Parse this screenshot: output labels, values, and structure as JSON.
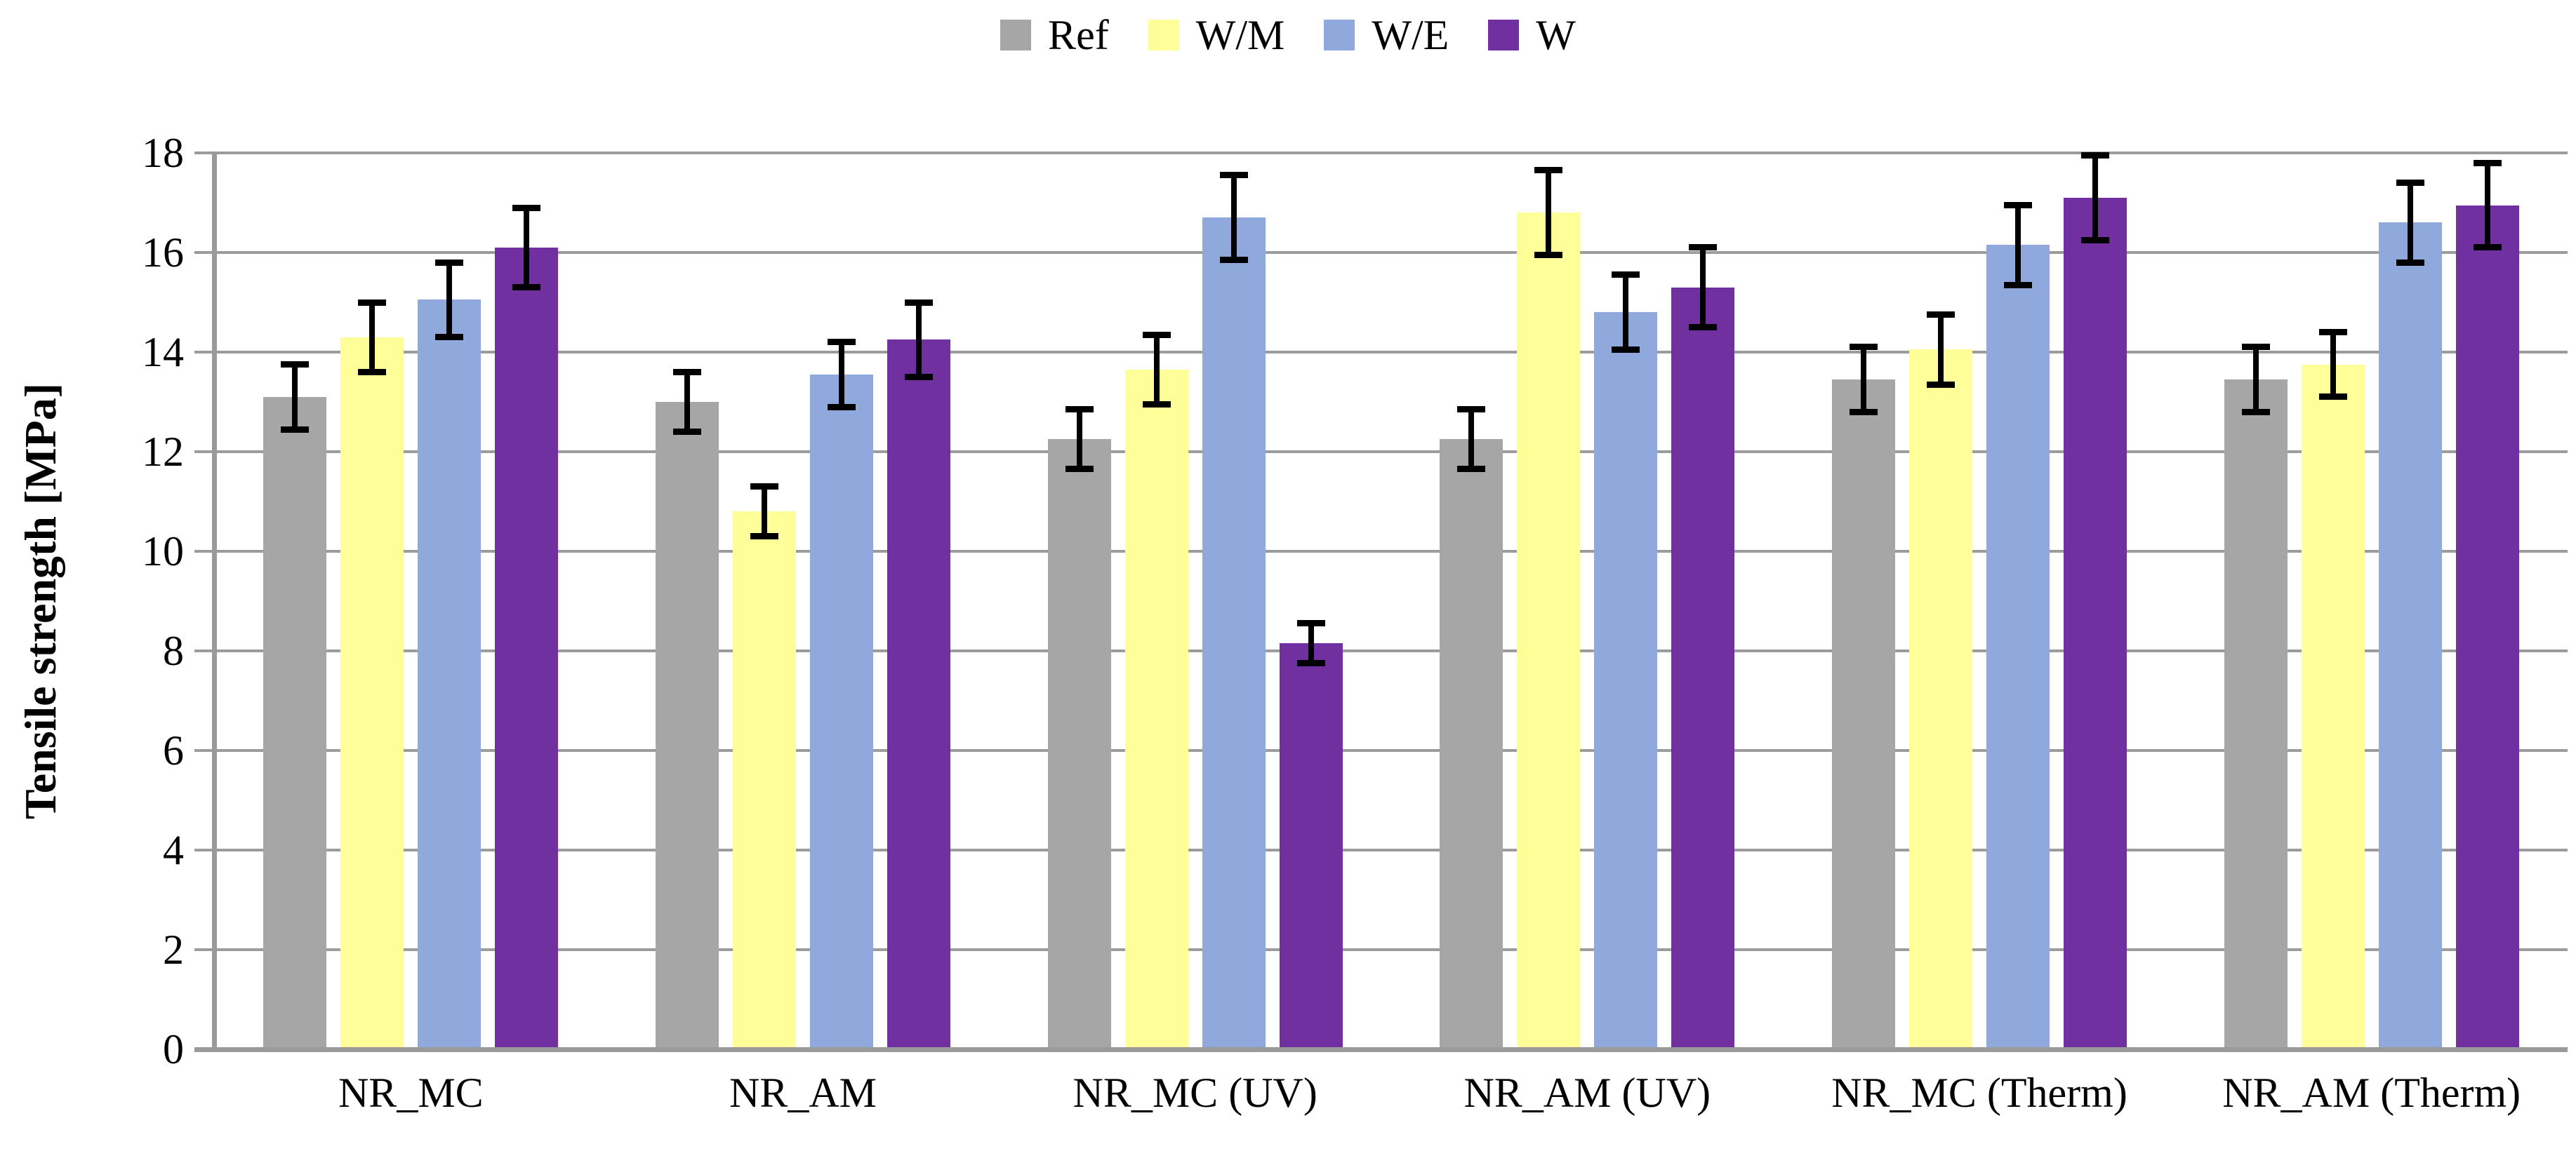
{
  "chart_data": {
    "type": "bar",
    "title": "",
    "xlabel": "",
    "ylabel": "Tensile strength [MPa]",
    "ylim": [
      0,
      18
    ],
    "ytick_step": 2,
    "yticks": [
      0,
      2,
      4,
      6,
      8,
      10,
      12,
      14,
      16,
      18
    ],
    "grid": "horizontal",
    "legend_position": "top-center",
    "gridline_color": "#9C9C9C",
    "axis_color": "#9A9A9A",
    "error_bar_color": "#000000",
    "background_color": "#FFFFFF",
    "categories": [
      "NR_MC",
      "NR_AM",
      "NR_MC (UV)",
      "NR_AM (UV)",
      "NR_MC (Therm)",
      "NR_AM (Therm)"
    ],
    "series": [
      {
        "name": "Ref",
        "color": "#A6A6A6",
        "values": [
          13.1,
          13.0,
          12.25,
          12.25,
          13.45,
          13.45
        ],
        "errors": [
          0.65,
          0.6,
          0.6,
          0.6,
          0.65,
          0.65
        ]
      },
      {
        "name": "W/M",
        "color": "#FFFF99",
        "values": [
          14.3,
          10.8,
          13.65,
          16.8,
          14.05,
          13.75
        ],
        "errors": [
          0.7,
          0.5,
          0.7,
          0.85,
          0.7,
          0.65
        ]
      },
      {
        "name": "W/E",
        "color": "#8FA9DC",
        "values": [
          15.05,
          13.55,
          16.7,
          14.8,
          16.15,
          16.6
        ],
        "errors": [
          0.75,
          0.65,
          0.85,
          0.75,
          0.8,
          0.8
        ]
      },
      {
        "name": "W",
        "color": "#7030A0",
        "values": [
          16.1,
          14.25,
          8.15,
          15.3,
          17.1,
          16.95
        ],
        "errors": [
          0.8,
          0.75,
          0.4,
          0.8,
          0.85,
          0.85
        ]
      }
    ]
  }
}
